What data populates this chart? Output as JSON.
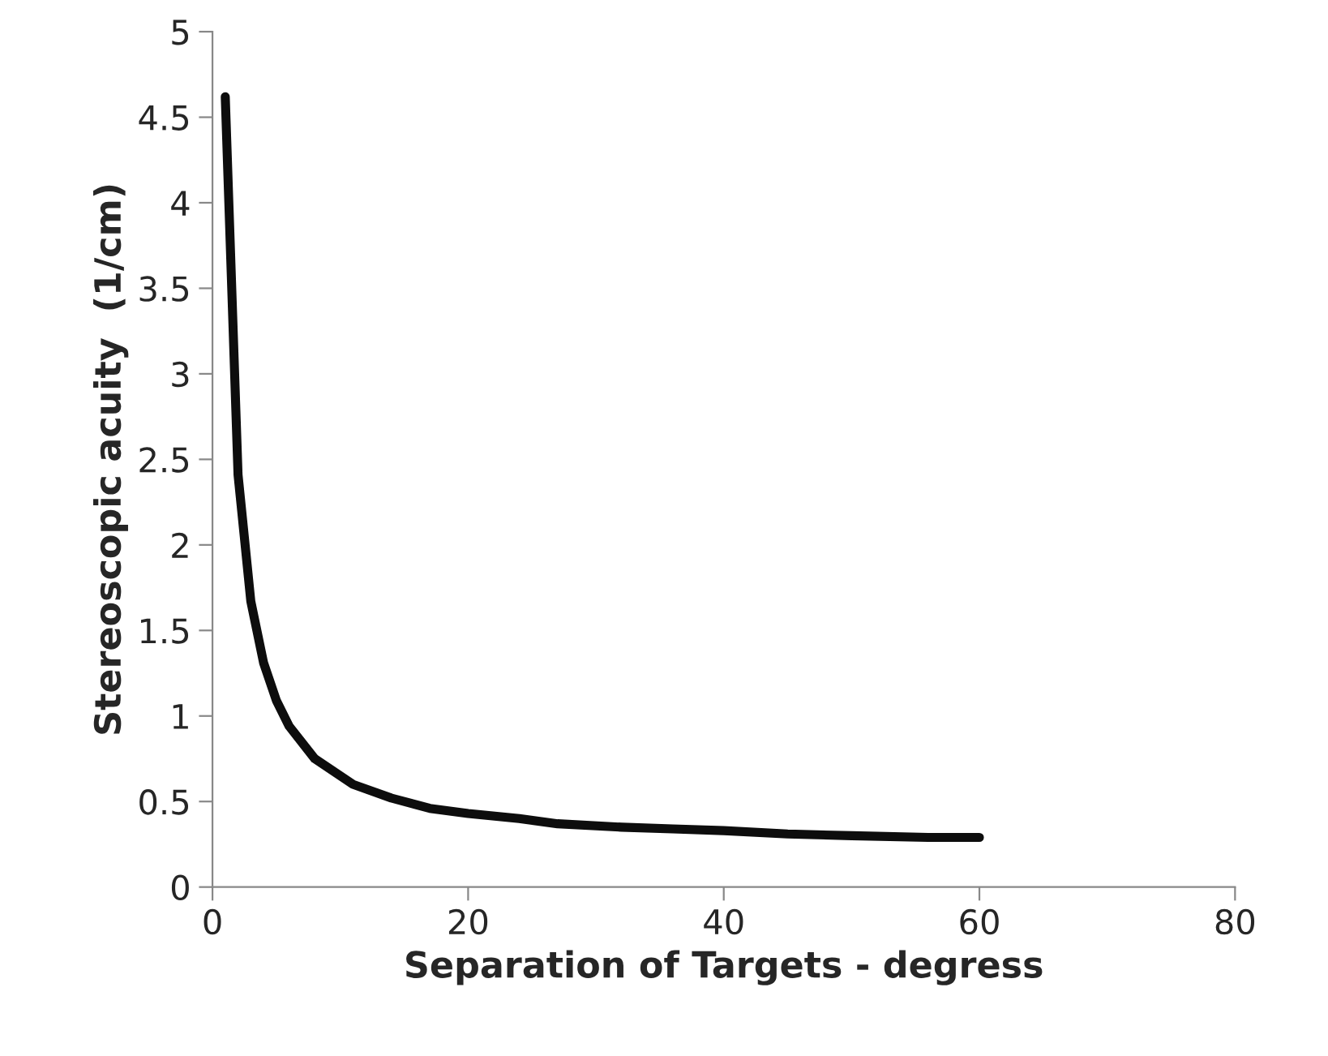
{
  "chart_data": {
    "type": "line",
    "xlabel": "Separation of Targets - degress",
    "ylabel": "Stereoscopic acuity  (1/cm)",
    "xlim": [
      0,
      80
    ],
    "xticks": [
      0,
      20,
      40,
      60,
      80
    ],
    "ylim": [
      0,
      5
    ],
    "yticks": [
      0,
      0.5,
      1,
      1.5,
      2,
      2.5,
      3,
      3.5,
      4,
      4.5,
      5
    ],
    "grid": false,
    "marker": "none",
    "line_style": "solid",
    "series": [
      {
        "color": "#0d0d0d",
        "x": [
          1,
          2,
          3,
          4,
          5,
          6,
          8,
          11,
          14,
          17,
          20,
          24,
          27,
          32,
          36,
          40,
          45,
          50,
          56,
          60
        ],
        "values": [
          4.62,
          2.41,
          1.67,
          1.31,
          1.09,
          0.94,
          0.75,
          0.6,
          0.52,
          0.46,
          0.43,
          0.4,
          0.37,
          0.35,
          0.34,
          0.33,
          0.31,
          0.3,
          0.29,
          0.29
        ]
      }
    ]
  }
}
